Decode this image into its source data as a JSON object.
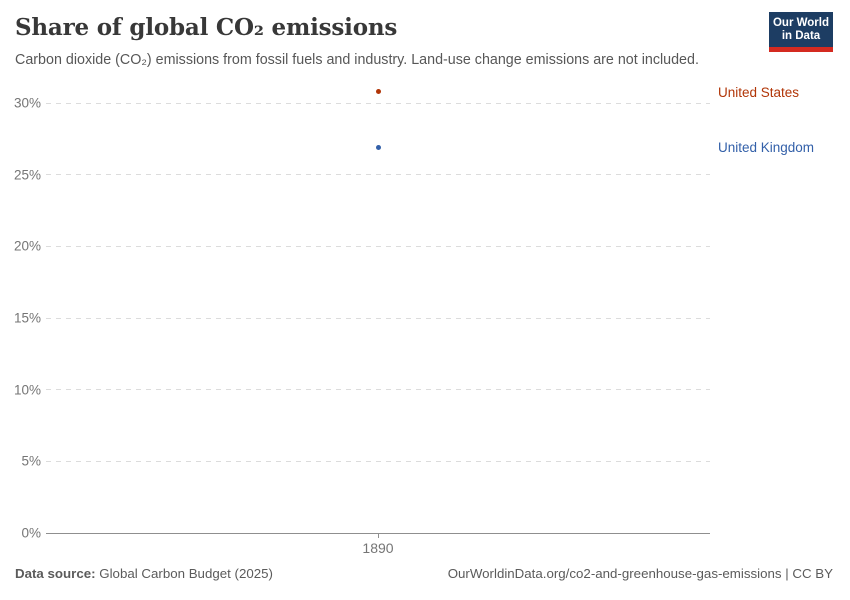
{
  "header": {
    "title": "Share of global CO₂ emissions",
    "subtitle": "Carbon dioxide (CO₂) emissions from fossil fuels and industry. Land-use change emissions are not included."
  },
  "logo": {
    "line1": "Our World",
    "line2": "in Data"
  },
  "chart_data": {
    "type": "scatter",
    "title": "Share of global CO₂ emissions",
    "x": [
      1890
    ],
    "x_tick_labels": [
      "1890"
    ],
    "series": [
      {
        "name": "United States",
        "color": "#b13507",
        "values": [
          30.8
        ]
      },
      {
        "name": "United Kingdom",
        "color": "#3360a9",
        "values": [
          26.9
        ]
      }
    ],
    "ylabel": "",
    "xlabel": "",
    "yticks": [
      0,
      5,
      10,
      15,
      20,
      25,
      30
    ],
    "ytick_suffix": "%",
    "ylim": [
      0,
      31.3
    ],
    "grid": true,
    "gridline_style": "dashed",
    "legend_position": "right-entity-labels"
  },
  "colors": {
    "background": "#ffffff",
    "title_text": "#383838",
    "subtitle_text": "#575757",
    "tick_text": "#757575",
    "gridline": "#dcdcdc",
    "axis_line": "#8f8f8f",
    "footer_text": "#5b5b5b",
    "logo_bg": "#1d3d63",
    "logo_stripe": "#d42a20",
    "us_red": "#b13507",
    "uk_blue": "#3360a9"
  },
  "footer": {
    "source_label": "Data source:",
    "source_value": " Global Carbon Budget (2025)",
    "right_text": "OurWorldinData.org/co2-and-greenhouse-gas-emissions | CC BY"
  }
}
